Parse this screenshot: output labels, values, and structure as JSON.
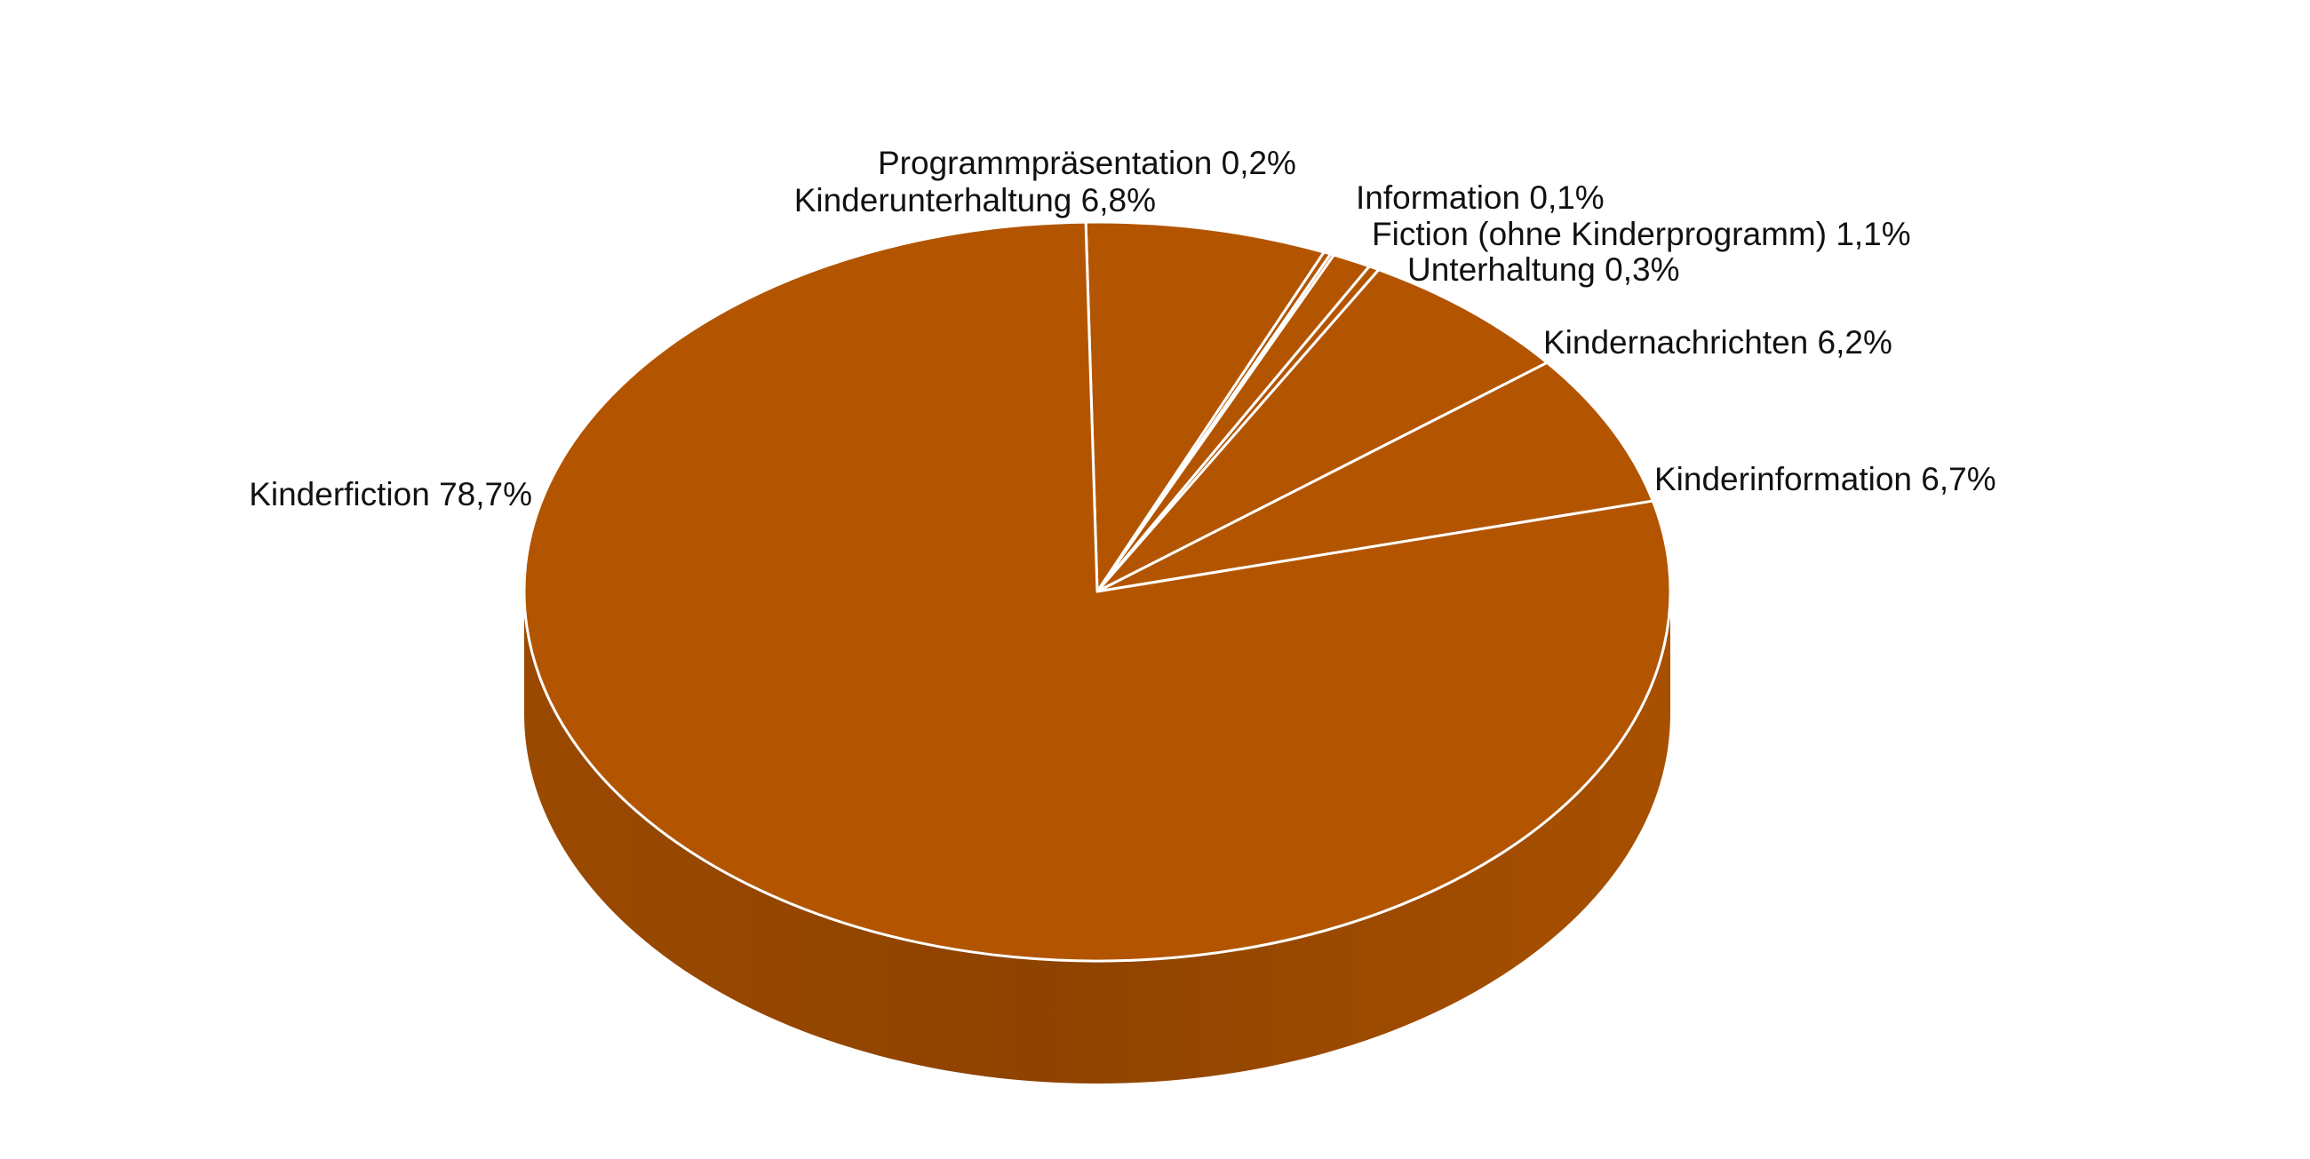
{
  "chart_data": {
    "type": "pie",
    "categories": [
      "Kinderunterhaltung",
      "Programmpräsentation",
      "Information",
      "Fiction (ohne Kinderprogramm)",
      "Unterhaltung",
      "Kindernachrichten",
      "Kinderinformation",
      "Kinderfiction"
    ],
    "values": [
      6.8,
      0.2,
      0.1,
      1.1,
      0.3,
      6.2,
      6.7,
      78.7
    ],
    "value_labels": [
      "6,8%",
      "0,2%",
      "0,1%",
      "1,1%",
      "0,3%",
      "6,2%",
      "6,7%",
      "78,7%"
    ],
    "color": "#b35500"
  }
}
